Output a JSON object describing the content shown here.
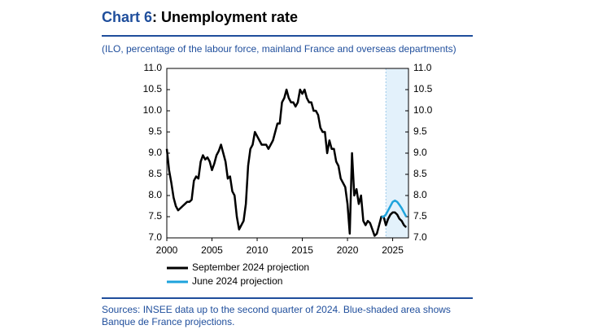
{
  "chart_data": {
    "type": "line",
    "title_parts": [
      "Chart 6",
      ": Unemployment rate"
    ],
    "subtitle": "(ILO, percentage of the labour force, mainland France and overseas departments)",
    "source_lines": [
      "Sources: INSEE data up to the second quarter of 2024. Blue-shaded area shows",
      "Banque de France projections."
    ],
    "x": [
      2000,
      2000.25,
      2000.5,
      2000.75,
      2001,
      2001.25,
      2001.5,
      2001.75,
      2002,
      2002.25,
      2002.5,
      2002.75,
      2003,
      2003.25,
      2003.5,
      2003.75,
      2004,
      2004.25,
      2004.5,
      2004.75,
      2005,
      2005.25,
      2005.5,
      2005.75,
      2006,
      2006.25,
      2006.5,
      2006.75,
      2007,
      2007.25,
      2007.5,
      2007.75,
      2008,
      2008.25,
      2008.5,
      2008.75,
      2009,
      2009.25,
      2009.5,
      2009.75,
      2010,
      2010.25,
      2010.5,
      2010.75,
      2011,
      2011.25,
      2011.5,
      2011.75,
      2012,
      2012.25,
      2012.5,
      2012.75,
      2013,
      2013.25,
      2013.5,
      2013.75,
      2014,
      2014.25,
      2014.5,
      2014.75,
      2015,
      2015.25,
      2015.5,
      2015.75,
      2016,
      2016.25,
      2016.5,
      2016.75,
      2017,
      2017.25,
      2017.5,
      2017.75,
      2018,
      2018.25,
      2018.5,
      2018.75,
      2019,
      2019.25,
      2019.5,
      2019.75,
      2020,
      2020.25,
      2020.5,
      2020.75,
      2021,
      2021.25,
      2021.5,
      2021.75,
      2022,
      2022.25,
      2022.5,
      2022.75,
      2023,
      2023.25,
      2023.5,
      2023.75,
      2024,
      2024.25,
      2024.5,
      2024.75,
      2025,
      2025.25,
      2025.5,
      2025.75,
      2026,
      2026.25,
      2026.5
    ],
    "series": [
      {
        "name": "September 2024 projection",
        "color": "#000000",
        "values": [
          9.1,
          8.6,
          8.3,
          7.95,
          7.75,
          7.65,
          7.7,
          7.75,
          7.8,
          7.85,
          7.85,
          7.9,
          8.35,
          8.45,
          8.4,
          8.8,
          8.95,
          8.85,
          8.9,
          8.8,
          8.6,
          8.75,
          8.95,
          9.05,
          9.2,
          9.0,
          8.8,
          8.4,
          8.45,
          8.1,
          8.0,
          7.5,
          7.2,
          7.3,
          7.4,
          7.8,
          8.7,
          9.1,
          9.2,
          9.5,
          9.4,
          9.3,
          9.2,
          9.2,
          9.2,
          9.1,
          9.2,
          9.3,
          9.5,
          9.7,
          9.7,
          10.2,
          10.3,
          10.5,
          10.3,
          10.2,
          10.2,
          10.1,
          10.2,
          10.5,
          10.4,
          10.5,
          10.3,
          10.2,
          10.2,
          10.0,
          10.0,
          9.9,
          9.6,
          9.5,
          9.5,
          9.0,
          9.3,
          9.1,
          9.1,
          8.8,
          8.7,
          8.4,
          8.3,
          8.2,
          7.8,
          7.1,
          9.0,
          8.0,
          8.15,
          7.8,
          8.0,
          7.4,
          7.3,
          7.4,
          7.35,
          7.2,
          7.05,
          7.1,
          7.3,
          7.5,
          7.5,
          7.3,
          7.45,
          7.55,
          7.6,
          7.6,
          7.55,
          7.45,
          7.4,
          7.3,
          7.25
        ]
      },
      {
        "name": "June 2024 projection",
        "color": "#1ea3dc",
        "values": [
          null,
          null,
          null,
          null,
          null,
          null,
          null,
          null,
          null,
          null,
          null,
          null,
          null,
          null,
          null,
          null,
          null,
          null,
          null,
          null,
          null,
          null,
          null,
          null,
          null,
          null,
          null,
          null,
          null,
          null,
          null,
          null,
          null,
          null,
          null,
          null,
          null,
          null,
          null,
          null,
          null,
          null,
          null,
          null,
          null,
          null,
          null,
          null,
          null,
          null,
          null,
          null,
          null,
          null,
          null,
          null,
          null,
          null,
          null,
          null,
          null,
          null,
          null,
          null,
          null,
          null,
          null,
          null,
          null,
          null,
          null,
          null,
          null,
          null,
          null,
          null,
          null,
          null,
          null,
          null,
          null,
          null,
          null,
          null,
          null,
          null,
          null,
          null,
          null,
          null,
          null,
          null,
          null,
          null,
          null,
          7.5,
          7.5,
          7.55,
          7.65,
          7.75,
          7.85,
          7.88,
          7.85,
          7.78,
          7.7,
          7.6,
          7.5
        ]
      }
    ],
    "shaded_xrange": [
      2024.25,
      2026.75
    ],
    "shade_color": "#e3f1fb",
    "xlim": [
      2000,
      2026.75
    ],
    "xticks": [
      2000,
      2005,
      2010,
      2015,
      2020,
      2025
    ],
    "ylim": [
      7,
      11
    ],
    "yticks": [
      {
        "value": 7,
        "label": "7.0"
      },
      {
        "value": 7.5,
        "label": "7.5"
      },
      {
        "value": 8,
        "label": "8.0"
      },
      {
        "value": 8.5,
        "label": "8.5"
      },
      {
        "value": 9,
        "label": "9.0"
      },
      {
        "value": 9.5,
        "label": "9.5"
      },
      {
        "value": 10,
        "label": "10.0"
      },
      {
        "value": 10.5,
        "label": "10.5"
      },
      {
        "value": 11,
        "label": "11.0"
      }
    ],
    "y2lim": [
      7,
      11
    ],
    "y2ticks": [
      {
        "value": 7,
        "label": "7.0"
      },
      {
        "value": 7.5,
        "label": "7.5"
      },
      {
        "value": 8,
        "label": "8.0"
      },
      {
        "value": 8.5,
        "label": "8.5"
      },
      {
        "value": 9,
        "label": "9.0"
      },
      {
        "value": 9.5,
        "label": "9.5"
      },
      {
        "value": 10,
        "label": "10.0"
      },
      {
        "value": 10.5,
        "label": "10.5"
      },
      {
        "value": 11,
        "label": "11.0"
      }
    ]
  }
}
